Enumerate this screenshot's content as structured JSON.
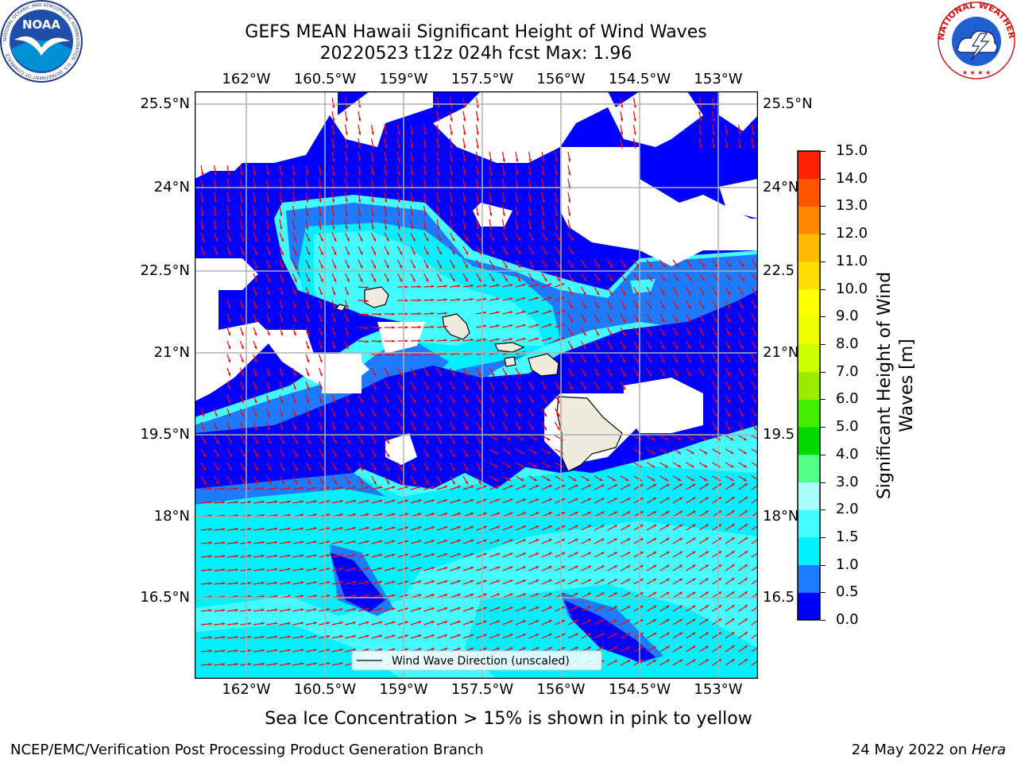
{
  "title": {
    "line1": "GEFS MEAN Hawaii Significant Height of Wind Waves",
    "line2": "20220523 t12z 024h fcst   Max: 1.96"
  },
  "map": {
    "lon_labels": [
      "162°W",
      "160.5°W",
      "159°W",
      "157.5°W",
      "156°W",
      "154.5°W",
      "153°W"
    ],
    "lat_labels": [
      "25.5°N",
      "24°N",
      "22.5°N",
      "21°N",
      "19.5°N",
      "18°N",
      "16.5°N"
    ],
    "lat_labels_right": [
      "25.5°N",
      "24°N",
      "22.5",
      "21°N",
      "19.5",
      "18°N",
      "16.5"
    ],
    "legend_label": "Wind Wave Direction (unscaled)",
    "colors": {
      "band_0_0p5": "#0000ff",
      "band_0p5_1": "#1e7bff",
      "band_1_1p5": "#00f0ff",
      "band_1p5_2": "#44fbff",
      "arrow": "#ff0000",
      "land": "#efebdc"
    }
  },
  "colorbar": {
    "title_line1": "Significant Height of Wind",
    "title_line2": "Waves [m]",
    "ticks": [
      "15.0",
      "14.0",
      "13.0",
      "12.0",
      "11.0",
      "10.0",
      "9.0",
      "8.0",
      "7.0",
      "6.0",
      "5.0",
      "4.0",
      "3.0",
      "2.0",
      "1.5",
      "1.0",
      "0.5",
      "0.0"
    ],
    "colors": [
      "#0000ff",
      "#1e7bff",
      "#00f0ff",
      "#44fbff",
      "#a8fffb",
      "#55ff88",
      "#00d900",
      "#44ee00",
      "#99ee00",
      "#ccff00",
      "#eeff00",
      "#ffff00",
      "#ffdd00",
      "#ffbb00",
      "#ff8800",
      "#ff5500",
      "#ff2200"
    ]
  },
  "note": "Sea Ice Concentration > 15% is shown in pink to yellow",
  "footer": {
    "left": "NCEP/EMC/Verification Post Processing Product Generation Branch",
    "right_date": "24 May 2022 on",
    "right_host": "Hera"
  },
  "logos": {
    "noaa_text": "NOAA",
    "noaa_ring": "NATIONAL OCEANIC AND ATMOSPHERIC ADMINISTRATION · U.S. DEPARTMENT OF COMMERCE",
    "nws_ring": "NATIONAL WEATHER SERVICE"
  }
}
